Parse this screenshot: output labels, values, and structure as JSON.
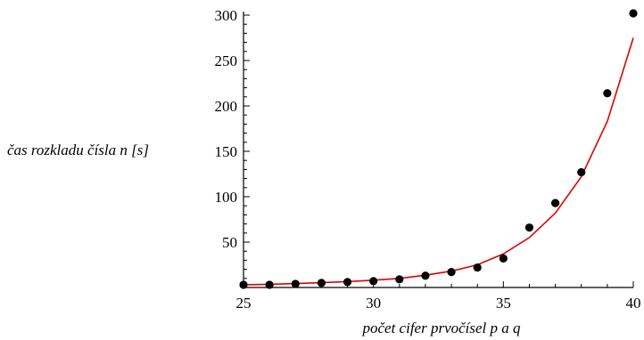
{
  "chart_data": {
    "type": "scatter",
    "title": "",
    "xlabel": "počet cifer prvočísel p a q",
    "ylabel": "čas rozkladu čísla n [s]",
    "xlim": [
      25,
      40
    ],
    "ylim": [
      0,
      300
    ],
    "x_ticks": [
      25,
      30,
      35,
      40
    ],
    "y_ticks": [
      50,
      100,
      150,
      200,
      250,
      300
    ],
    "grid": false,
    "legend": "none",
    "series": [
      {
        "kind": "points",
        "color": "#000000",
        "x": [
          25,
          26,
          27,
          28,
          29,
          30,
          31,
          32,
          33,
          34,
          35,
          36,
          37,
          38,
          39,
          40
        ],
        "y": [
          3,
          3,
          4,
          5,
          6,
          7,
          9,
          13,
          17,
          22,
          32,
          66,
          93,
          127,
          214,
          302
        ]
      },
      {
        "kind": "fit-curve",
        "color": "#e00000",
        "x": [
          25,
          26,
          27,
          28,
          29,
          30,
          31,
          32,
          33,
          34,
          35,
          36,
          37,
          38,
          39,
          40
        ],
        "y": [
          3,
          3.5,
          4.3,
          5.3,
          6.5,
          8,
          10,
          13.5,
          18,
          25,
          37,
          55,
          82,
          122,
          183,
          275
        ]
      }
    ]
  }
}
